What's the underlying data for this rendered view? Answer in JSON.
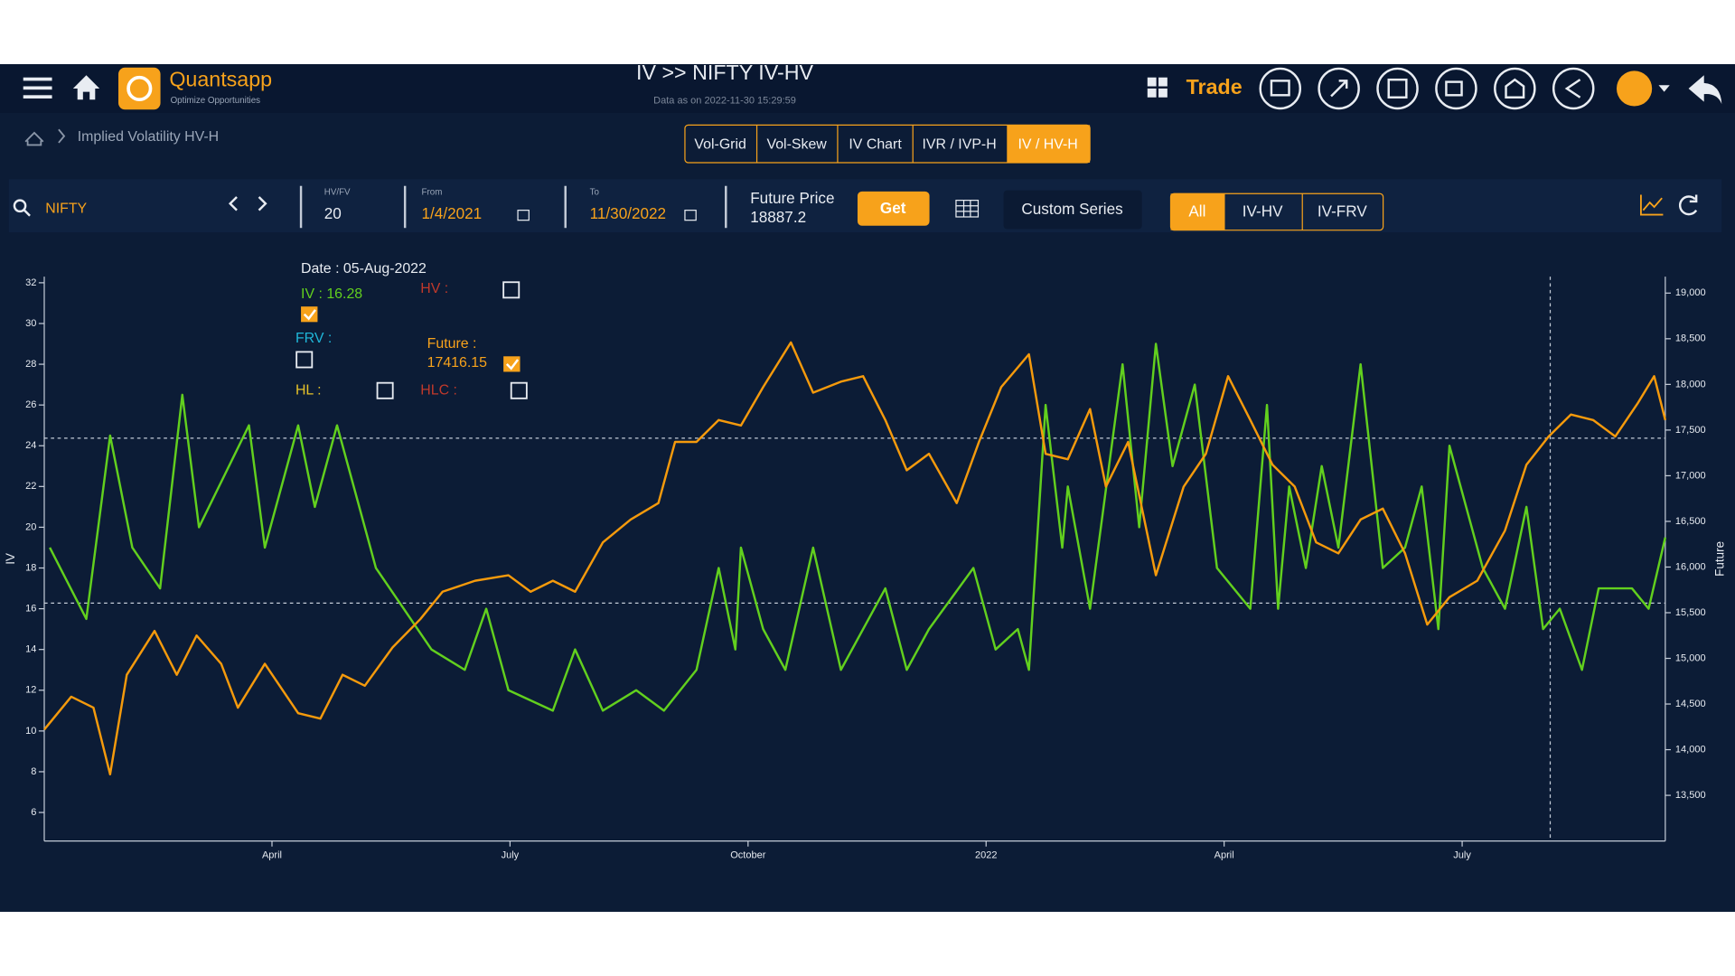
{
  "header": {
    "logo_name": "Quantsapp",
    "logo_tagline": "Optimize Opportunities",
    "title": "IV >> NIFTY IV-HV",
    "subtitle": "Data as on 2022-11-30 15:29:59",
    "trade": "Trade"
  },
  "breadcrumb": "Implied Volatility HV-H",
  "tabs": [
    "Vol-Grid",
    "Vol-Skew",
    "IV Chart",
    "IVR / IVP-H",
    "IV / HV-H"
  ],
  "toolbar": {
    "symbol": "NIFTY",
    "hv_fv_label": "HV/FV",
    "hv_fv": "20",
    "from_label": "From",
    "from": "1/4/2021",
    "to_label": "To",
    "to": "11/30/2022",
    "future_price_label": "Future Price",
    "future_price": "18887.2",
    "get": "Get",
    "custom_series": "Custom Series",
    "filters": [
      "All",
      "IV-HV",
      "IV-FRV"
    ]
  },
  "tooltip": {
    "date": "Date : 05-Aug-2022",
    "iv": "IV : 16.28",
    "hv": "HV :",
    "frv": "FRV :",
    "future_label": "Future :",
    "future_value": "17416.15",
    "hl": "HL :",
    "hlc": "HLC :"
  },
  "chart_data": {
    "type": "line",
    "ylabel": "IV",
    "y2label": "Future",
    "xlim": [
      0.13,
      20.56
    ],
    "xticks": [
      {
        "value": 3,
        "label": "April"
      },
      {
        "value": 6,
        "label": "July"
      },
      {
        "value": 9,
        "label": "October"
      },
      {
        "value": 12,
        "label": "2022"
      },
      {
        "value": 15,
        "label": "April"
      },
      {
        "value": 18,
        "label": "July"
      }
    ],
    "ylim": [
      4.6,
      32.3
    ],
    "yticks": [
      6,
      8,
      10,
      12,
      14,
      16,
      18,
      20,
      22,
      24,
      26,
      28,
      30,
      32
    ],
    "y2lim": [
      13000,
      19180
    ],
    "y2ticks": [
      {
        "value": 13500,
        "label": "13,500"
      },
      {
        "value": 14000,
        "label": "14,000"
      },
      {
        "value": 14500,
        "label": "14,500"
      },
      {
        "value": 15000,
        "label": "15,000"
      },
      {
        "value": 15500,
        "label": "15,500"
      },
      {
        "value": 16000,
        "label": "16,000"
      },
      {
        "value": 16500,
        "label": "16,500"
      },
      {
        "value": 17000,
        "label": "17,000"
      },
      {
        "value": 17500,
        "label": "17,500"
      },
      {
        "value": 18000,
        "label": "18,000"
      },
      {
        "value": 18500,
        "label": "18,500"
      },
      {
        "value": 19000,
        "label": "19,000"
      }
    ],
    "series": [
      {
        "color": "#62d01e",
        "x": [
          0.2,
          0.66,
          0.96,
          1.24,
          1.59,
          1.87,
          2.08,
          2.71,
          2.91,
          3.33,
          3.54,
          3.82,
          4.03,
          4.31,
          4.66,
          5.01,
          5.43,
          5.7,
          5.98,
          6.54,
          6.82,
          7.17,
          7.59,
          7.94,
          8.35,
          8.63,
          8.84,
          8.91,
          9.19,
          9.47,
          9.82,
          10.17,
          10.73,
          11.0,
          11.28,
          11.84,
          12.12,
          12.4,
          12.54,
          12.75,
          12.96,
          13.03,
          13.31,
          13.72,
          13.93,
          14.14,
          14.35,
          14.63,
          14.91,
          15.33,
          15.54,
          15.68,
          15.82,
          16.03,
          16.23,
          16.44,
          16.72,
          17.0,
          17.28,
          17.49,
          17.7,
          17.84,
          18.26,
          18.54,
          18.81,
          19.02,
          19.23,
          19.51,
          19.72,
          20.14,
          20.35,
          20.56
        ],
        "values": [
          19,
          15.5,
          24.5,
          19,
          17,
          26.5,
          20,
          25,
          19,
          25,
          21,
          25,
          22,
          18,
          16,
          14,
          13,
          16,
          12,
          11,
          14,
          11,
          12,
          11,
          13,
          18,
          14,
          19,
          15,
          13,
          19,
          13,
          17,
          13,
          15,
          18,
          14,
          15,
          13,
          26,
          19,
          22,
          16,
          28,
          20,
          29,
          23,
          27,
          18,
          16,
          26,
          16,
          22,
          18,
          23,
          19,
          28,
          18,
          19,
          22,
          15,
          24,
          18,
          16,
          21,
          15,
          16,
          13,
          17,
          17,
          16,
          19.5
        ]
      },
      {
        "color": "#f59a0c",
        "axis": "y2",
        "x": [
          0.13,
          0.47,
          0.75,
          0.96,
          1.17,
          1.52,
          1.8,
          2.05,
          2.36,
          2.57,
          2.91,
          3.33,
          3.61,
          3.89,
          4.17,
          4.52,
          4.87,
          5.15,
          5.56,
          5.98,
          6.26,
          6.54,
          6.82,
          7.17,
          7.52,
          7.87,
          8.08,
          8.35,
          8.63,
          8.91,
          9.19,
          9.54,
          9.82,
          10.17,
          10.45,
          10.73,
          11.0,
          11.28,
          11.63,
          11.91,
          12.19,
          12.54,
          12.75,
          13.03,
          13.31,
          13.51,
          13.79,
          14.14,
          14.49,
          14.77,
          15.05,
          15.33,
          15.61,
          15.89,
          16.16,
          16.44,
          16.72,
          17.0,
          17.28,
          17.56,
          17.84,
          18.19,
          18.54,
          18.81,
          19.09,
          19.37,
          19.65,
          19.93,
          20.21,
          20.42,
          20.56
        ],
        "values": [
          14220,
          14580,
          14460,
          13730,
          14820,
          15300,
          14820,
          15250,
          14940,
          14460,
          14940,
          14400,
          14340,
          14820,
          14700,
          15120,
          15430,
          15730,
          15850,
          15910,
          15730,
          15850,
          15730,
          16270,
          16520,
          16700,
          17370,
          17370,
          17610,
          17550,
          17970,
          18460,
          17910,
          18030,
          18090,
          17610,
          17060,
          17240,
          16700,
          17370,
          17970,
          18330,
          17240,
          17180,
          17730,
          16880,
          17370,
          15910,
          16880,
          17240,
          18090,
          17610,
          17120,
          16880,
          16270,
          16150,
          16520,
          16640,
          16150,
          15370,
          15670,
          15850,
          16400,
          17120,
          17430,
          17670,
          17610,
          17430,
          17790,
          18090,
          17610
        ]
      }
    ]
  }
}
